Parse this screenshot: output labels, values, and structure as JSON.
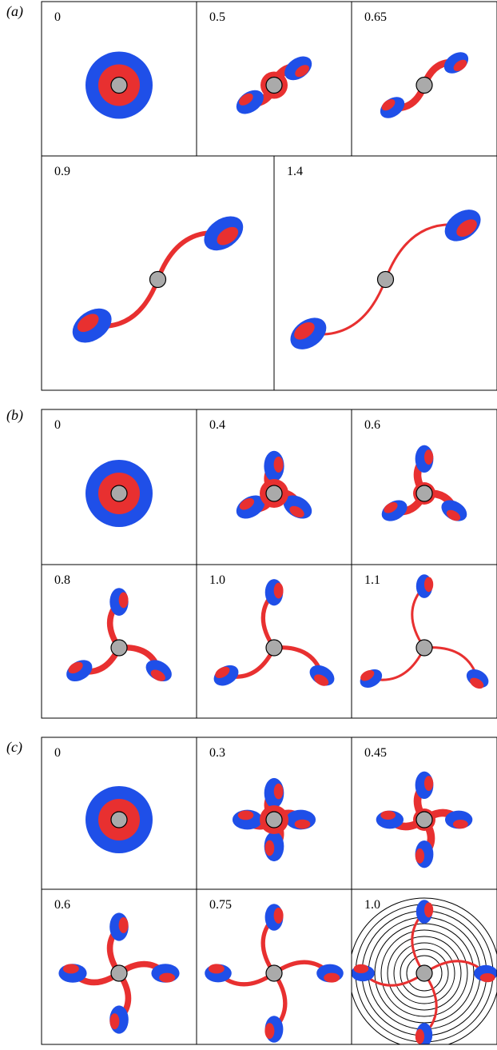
{
  "panels": [
    {
      "label": "(a)",
      "frames": [
        {
          "time": "0"
        },
        {
          "time": "0.5"
        },
        {
          "time": "0.65"
        },
        {
          "time": "0.9"
        },
        {
          "time": "1.4"
        }
      ]
    },
    {
      "label": "(b)",
      "frames": [
        {
          "time": "0"
        },
        {
          "time": "0.4"
        },
        {
          "time": "0.6"
        },
        {
          "time": "0.8"
        },
        {
          "time": "1.0"
        },
        {
          "time": "1.1"
        }
      ]
    },
    {
      "label": "(c)",
      "frames": [
        {
          "time": "0"
        },
        {
          "time": "0.3"
        },
        {
          "time": "0.45"
        },
        {
          "time": "0.6"
        },
        {
          "time": "0.75"
        },
        {
          "time": "1.0"
        }
      ]
    }
  ]
}
